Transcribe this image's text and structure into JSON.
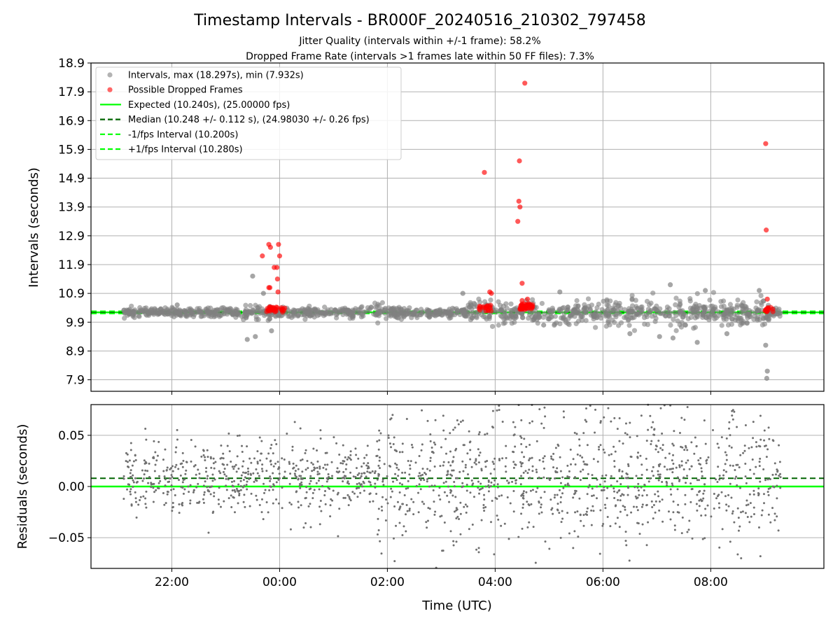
{
  "chart_data": [
    {
      "type": "scatter",
      "title": "Timestamp Intervals - BR000F_20240516_210302_797458",
      "subtitle_lines": [
        "Jitter Quality (intervals within +/-1 frame): 58.2%",
        "Dropped Frame Rate (intervals >1 frames late within 50 FF files): 7.3%"
      ],
      "ylabel": "Intervals (seconds)",
      "xlabel": "",
      "ylim": [
        7.5,
        18.9
      ],
      "y_ticks": [
        "7.9",
        "8.9",
        "9.9",
        "10.9",
        "11.9",
        "12.9",
        "13.9",
        "14.9",
        "15.9",
        "16.9",
        "17.9",
        "18.9"
      ],
      "x_range_hours": [
        -3.5,
        10.1
      ],
      "x_tick_hours": [
        -2,
        0,
        2,
        4,
        6,
        8
      ],
      "grid": true,
      "legend_position": "upper-left",
      "legend": [
        {
          "label": "Intervals, max (18.297s), min (7.932s)",
          "kind": "dot",
          "color": "#808080"
        },
        {
          "label": "Possible Dropped Frames",
          "kind": "dot",
          "color": "#ff0000"
        },
        {
          "label": "Expected (10.240s), (25.00000 fps)",
          "kind": "line",
          "color": "#00ff00"
        },
        {
          "label": "Median (10.248 +/- 0.112 s), (24.98030 +/- 0.26 fps)",
          "kind": "dash",
          "color": "#006400"
        },
        {
          "label": "-1/fps Interval (10.200s)",
          "kind": "dash",
          "color": "#00ff00"
        },
        {
          "label": "+1/fps Interval (10.280s)",
          "kind": "dash",
          "color": "#00ff00"
        }
      ],
      "reference_lines": {
        "expected": 10.24,
        "median": 10.248,
        "minus_1fps": 10.2,
        "plus_1fps": 10.28
      },
      "series": [
        {
          "name": "Intervals, max (18.297s), min (7.932s)",
          "color": "#808080",
          "generated": {
            "x_start_hour": -2.9,
            "x_end_hour": 9.3,
            "center": 10.24,
            "count": 1300
          },
          "points": [
            {
              "x": -1.9,
              "y": 10.5
            },
            {
              "x": -0.6,
              "y": 9.3
            },
            {
              "x": -0.45,
              "y": 9.4
            },
            {
              "x": -0.3,
              "y": 10.9
            },
            {
              "x": -0.5,
              "y": 11.5
            },
            {
              "x": -0.15,
              "y": 9.6
            },
            {
              "x": 3.4,
              "y": 10.9
            },
            {
              "x": 7.25,
              "y": 11.2
            },
            {
              "x": 7.05,
              "y": 9.4
            },
            {
              "x": 7.75,
              "y": 9.2
            },
            {
              "x": 8.3,
              "y": 9.5
            },
            {
              "x": 8.9,
              "y": 11.0
            },
            {
              "x": 9.02,
              "y": 9.1
            },
            {
              "x": 9.04,
              "y": 7.95
            },
            {
              "x": 9.05,
              "y": 8.2
            },
            {
              "x": 4.9,
              "y": 9.8
            },
            {
              "x": 5.2,
              "y": 10.95
            },
            {
              "x": 6.5,
              "y": 9.5
            },
            {
              "x": 7.9,
              "y": 11.0
            },
            {
              "x": 7.3,
              "y": 9.35
            }
          ]
        },
        {
          "name": "Possible Dropped Frames",
          "color": "#ff0000",
          "points": [
            {
              "x": -0.32,
              "y": 12.2
            },
            {
              "x": -0.2,
              "y": 12.6
            },
            {
              "x": -0.17,
              "y": 12.5
            },
            {
              "x": -0.1,
              "y": 11.8
            },
            {
              "x": -0.05,
              "y": 11.8
            },
            {
              "x": -0.02,
              "y": 12.6
            },
            {
              "x": 0.0,
              "y": 12.2
            },
            {
              "x": -0.04,
              "y": 11.4
            },
            {
              "x": -0.03,
              "y": 10.95
            },
            {
              "x": -0.18,
              "y": 11.1
            },
            {
              "x": -0.2,
              "y": 11.1
            },
            {
              "x": 3.8,
              "y": 15.1
            },
            {
              "x": 3.9,
              "y": 10.95
            },
            {
              "x": 3.93,
              "y": 10.9
            },
            {
              "x": 4.42,
              "y": 13.4
            },
            {
              "x": 4.44,
              "y": 14.1
            },
            {
              "x": 4.46,
              "y": 13.9
            },
            {
              "x": 4.45,
              "y": 15.5
            },
            {
              "x": 4.5,
              "y": 11.25
            },
            {
              "x": 4.55,
              "y": 18.2
            },
            {
              "x": 4.5,
              "y": 10.65
            },
            {
              "x": 4.6,
              "y": 10.7
            },
            {
              "x": 9.02,
              "y": 16.1
            },
            {
              "x": 9.03,
              "y": 13.1
            },
            {
              "x": 9.05,
              "y": 10.7
            }
          ],
          "clusters": [
            {
              "x_from": -0.25,
              "x_to": 0.12,
              "y": 10.3,
              "count": 30
            },
            {
              "x_from": 3.7,
              "x_to": 3.95,
              "y": 10.35,
              "count": 18
            },
            {
              "x_from": 4.45,
              "x_to": 4.7,
              "y": 10.4,
              "count": 40
            },
            {
              "x_from": 9.0,
              "x_to": 9.2,
              "y": 10.3,
              "count": 14
            }
          ]
        }
      ]
    },
    {
      "type": "scatter",
      "ylabel": "Residuals (seconds)",
      "xlabel": "Time (UTC)",
      "ylim": [
        -0.08,
        0.08
      ],
      "y_ticks": [
        "−0.05",
        "0.00",
        "0.05"
      ],
      "y_tick_values": [
        -0.05,
        0.0,
        0.05
      ],
      "x_tick_labels": [
        "22:00",
        "00:00",
        "02:00",
        "04:00",
        "06:00",
        "08:00"
      ],
      "x_tick_hours": [
        -2,
        0,
        2,
        4,
        6,
        8
      ],
      "x_range_hours": [
        -3.5,
        10.1
      ],
      "grid": true,
      "reference_lines": {
        "zero": 0.0,
        "median_offset": 0.008
      },
      "series": [
        {
          "name": "",
          "color": "#808080",
          "generated": {
            "x_start_hour": -2.9,
            "x_end_hour": 9.3,
            "count": 1600,
            "center": 0.008
          }
        }
      ]
    }
  ]
}
